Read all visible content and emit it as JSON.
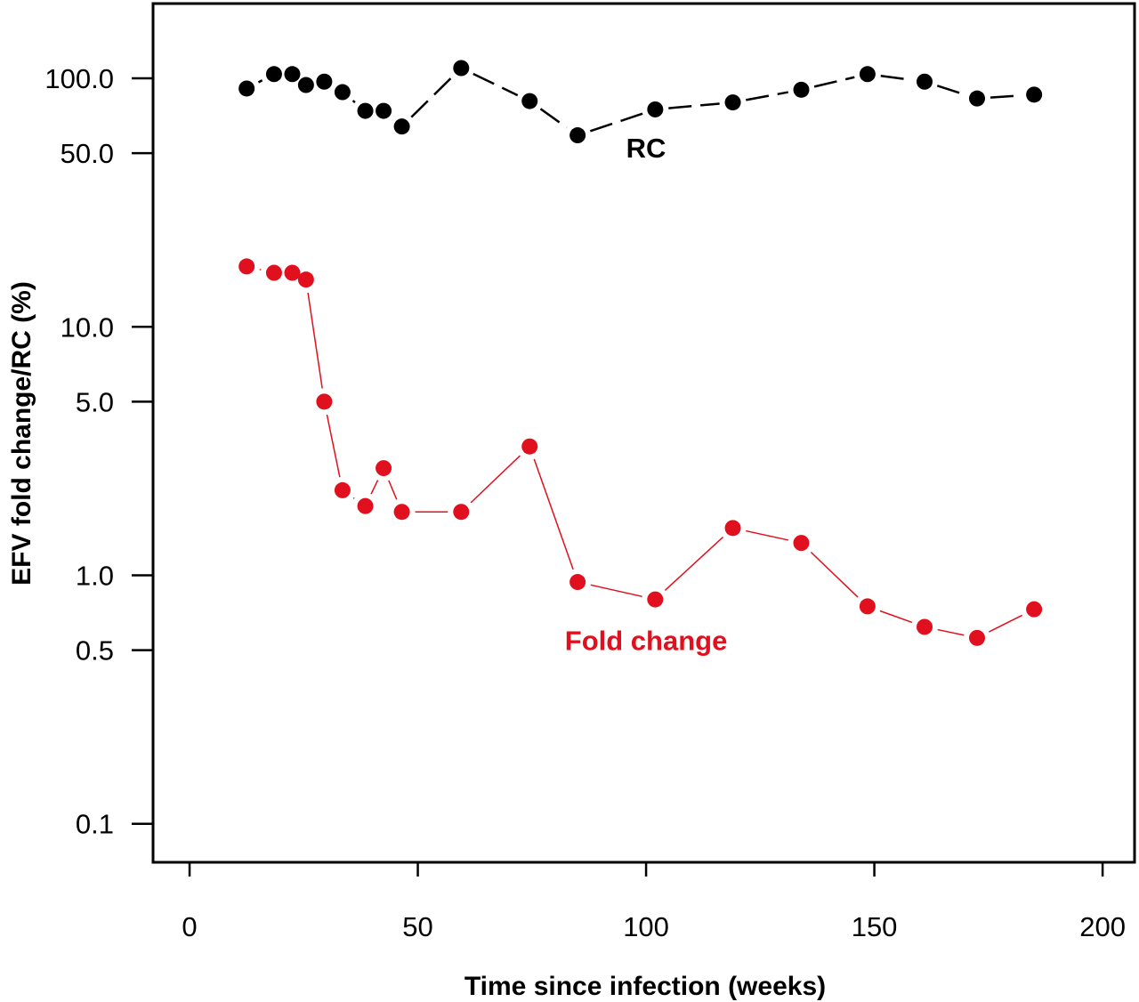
{
  "chart_data": {
    "type": "line",
    "title": "",
    "xlabel": "Time since infection (weeks)",
    "ylabel": "EFV fold change/RC (%)",
    "xlim": [
      -8,
      207
    ],
    "ylim": [
      0.07,
      200
    ],
    "yscale": "log",
    "grid": false,
    "legend": "none",
    "xticks": [
      0,
      50,
      100,
      150,
      200
    ],
    "xtick_labels": [
      "0",
      "50",
      "100",
      "150",
      "200"
    ],
    "yticks": [
      0.1,
      0.5,
      1.0,
      5.0,
      10.0,
      50.0,
      100.0
    ],
    "ytick_labels": [
      "0.1",
      "0.5",
      "1.0",
      "5.0",
      "10.0",
      "50.0",
      "100.0"
    ],
    "series": [
      {
        "name": "RC",
        "color": "#000000",
        "line": "long-dash",
        "x": [
          12.5,
          18.5,
          22.5,
          25.5,
          29.5,
          33.5,
          38.5,
          42.5,
          46.5,
          59.5,
          74.5,
          85,
          102,
          119,
          134,
          148.5,
          161,
          172.5,
          185
        ],
        "y": [
          91,
          104,
          104,
          94,
          97,
          88,
          74,
          74,
          64,
          110,
          81,
          59,
          75,
          80,
          90,
          104,
          97,
          83,
          86
        ]
      },
      {
        "name": "Fold change",
        "color": "#e0101e",
        "line": "solid-thin",
        "x": [
          12.5,
          18.5,
          22.5,
          25.5,
          29.5,
          33.5,
          38.5,
          42.5,
          46.5,
          59.5,
          74.5,
          85,
          102,
          119,
          134,
          148.5,
          161,
          172.5,
          185
        ],
        "y": [
          17.5,
          16.5,
          16.5,
          15.5,
          5.0,
          2.2,
          1.9,
          2.7,
          1.8,
          1.8,
          3.3,
          0.94,
          0.8,
          1.55,
          1.35,
          0.75,
          0.62,
          0.56,
          0.73
        ]
      }
    ],
    "annotations": [
      {
        "text": "RC",
        "x": 100,
        "y": 48,
        "color": "#000000"
      },
      {
        "text": "Fold change",
        "x": 100,
        "y": 0.5,
        "color": "#e0101e"
      }
    ]
  }
}
